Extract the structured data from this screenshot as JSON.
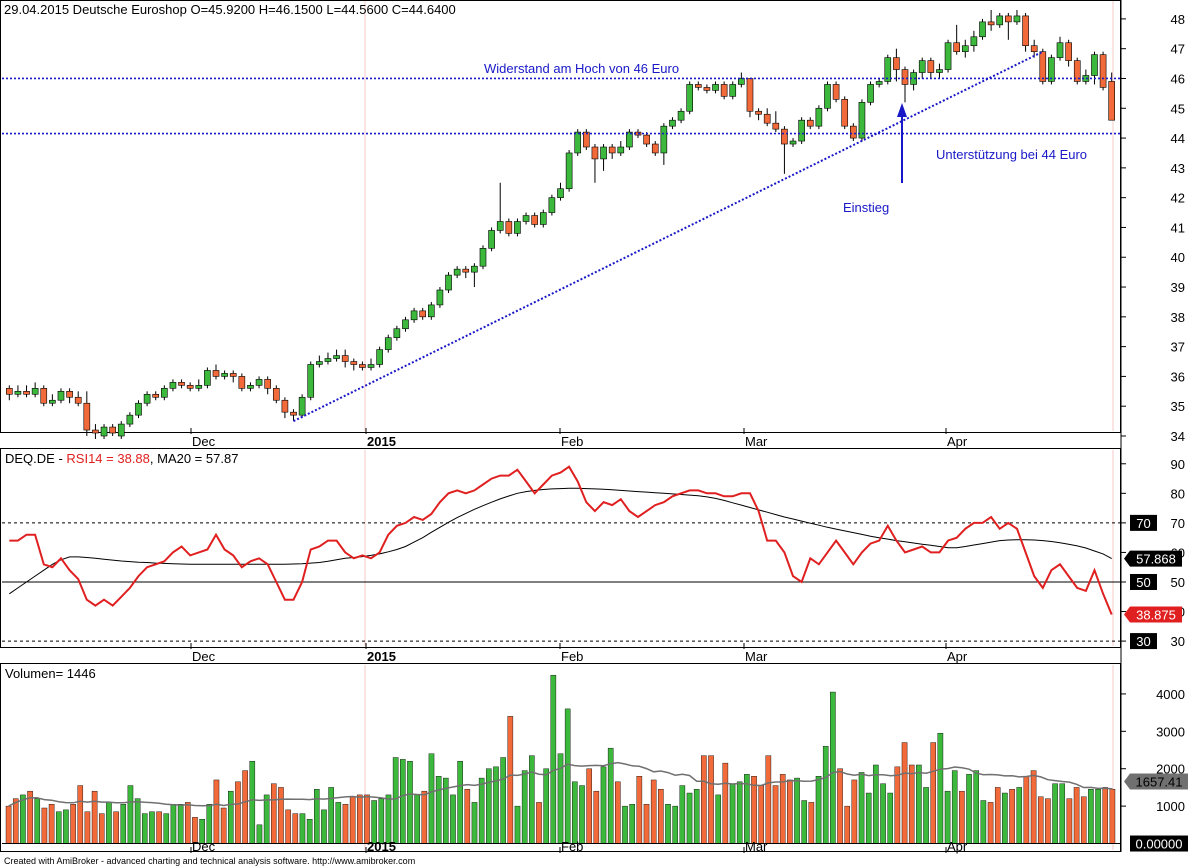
{
  "header": {
    "title": "29.04.2015 Deutsche Euroshop  O=45.9200  H=46.1500  L=44.5600  C=44.6400"
  },
  "footer": {
    "credit": "Created with AmiBroker - advanced charting and technical analysis software. http://www.amibroker.com"
  },
  "x_labels": [
    "Dec",
    "2015",
    "Feb",
    "Mar",
    "Apr"
  ],
  "colors": {
    "up": "#3cb83c",
    "down": "#f26a3a",
    "rsi": "#e02020",
    "annotation": "#1818c8",
    "ma": "#000000",
    "volume_ma": "#707070"
  },
  "chart_data": [
    {
      "type": "candlestick",
      "ylim": [
        34,
        48.5
      ],
      "yticks": [
        34,
        35,
        36,
        37,
        38,
        39,
        40,
        41,
        42,
        43,
        44,
        45,
        46,
        47,
        48
      ],
      "annotations": {
        "resistance_label": "Widerstand am Hoch von 46 Euro",
        "support_label": "Unterstützung bei 44 Euro",
        "entry_label": "Einstieg",
        "resistance_level": 46,
        "support_level": 44.15
      },
      "candles": [
        [
          35.6,
          35.4,
          35.7,
          35.2
        ],
        [
          35.4,
          35.5,
          35.7,
          35.3
        ],
        [
          35.5,
          35.4,
          35.7,
          35.3
        ],
        [
          35.4,
          35.6,
          35.8,
          35.3
        ],
        [
          35.6,
          35.1,
          35.7,
          35.0
        ],
        [
          35.1,
          35.2,
          35.4,
          35.0
        ],
        [
          35.2,
          35.5,
          35.6,
          35.1
        ],
        [
          35.5,
          35.3,
          35.6,
          35.1
        ],
        [
          35.3,
          35.1,
          35.5,
          35.0
        ],
        [
          35.1,
          34.2,
          35.5,
          34.0
        ],
        [
          34.2,
          34.1,
          34.4,
          33.9
        ],
        [
          34.0,
          34.3,
          34.4,
          33.9
        ],
        [
          34.3,
          34.1,
          34.4,
          34.0
        ],
        [
          34.0,
          34.4,
          34.5,
          33.9
        ],
        [
          34.4,
          34.7,
          34.8,
          34.3
        ],
        [
          34.7,
          35.1,
          35.2,
          34.6
        ],
        [
          35.1,
          35.4,
          35.5,
          35.0
        ],
        [
          35.4,
          35.3,
          35.5,
          35.2
        ],
        [
          35.3,
          35.6,
          35.7,
          35.2
        ],
        [
          35.6,
          35.8,
          35.9,
          35.5
        ],
        [
          35.8,
          35.7,
          35.9,
          35.6
        ],
        [
          35.7,
          35.6,
          35.8,
          35.5
        ],
        [
          35.6,
          35.7,
          35.9,
          35.5
        ],
        [
          35.7,
          36.2,
          36.3,
          35.6
        ],
        [
          36.2,
          36.0,
          36.4,
          35.9
        ],
        [
          36.0,
          36.1,
          36.2,
          35.9
        ],
        [
          36.1,
          36.0,
          36.2,
          35.8
        ],
        [
          36.0,
          35.6,
          36.1,
          35.5
        ],
        [
          35.6,
          35.7,
          35.8,
          35.5
        ],
        [
          35.7,
          35.9,
          36.0,
          35.6
        ],
        [
          35.9,
          35.6,
          36.0,
          35.4
        ],
        [
          35.6,
          35.2,
          35.7,
          35.1
        ],
        [
          35.2,
          34.8,
          35.3,
          34.6
        ],
        [
          34.8,
          34.7,
          34.9,
          34.5
        ],
        [
          34.7,
          35.3,
          35.4,
          34.6
        ],
        [
          35.3,
          36.4,
          36.5,
          35.2
        ],
        [
          36.4,
          36.5,
          36.7,
          36.3
        ],
        [
          36.5,
          36.6,
          36.8,
          36.4
        ],
        [
          36.6,
          36.7,
          36.9,
          36.5
        ],
        [
          36.7,
          36.5,
          36.9,
          36.3
        ],
        [
          36.5,
          36.4,
          36.6,
          36.2
        ],
        [
          36.4,
          36.3,
          36.5,
          36.2
        ],
        [
          36.3,
          36.4,
          36.6,
          36.2
        ],
        [
          36.4,
          36.9,
          37.0,
          36.3
        ],
        [
          36.9,
          37.3,
          37.4,
          36.8
        ],
        [
          37.3,
          37.6,
          37.7,
          37.2
        ],
        [
          37.6,
          37.9,
          38.0,
          37.5
        ],
        [
          37.9,
          38.2,
          38.3,
          37.8
        ],
        [
          38.2,
          38.0,
          38.3,
          37.9
        ],
        [
          38.0,
          38.4,
          38.5,
          37.9
        ],
        [
          38.4,
          38.9,
          39.0,
          38.3
        ],
        [
          38.9,
          39.4,
          39.5,
          38.8
        ],
        [
          39.4,
          39.6,
          39.7,
          39.3
        ],
        [
          39.6,
          39.5,
          39.7,
          39.3
        ],
        [
          39.5,
          39.7,
          39.8,
          39.0
        ],
        [
          39.7,
          40.3,
          40.4,
          39.6
        ],
        [
          40.3,
          40.9,
          41.0,
          40.2
        ],
        [
          40.9,
          41.2,
          42.5,
          40.8
        ],
        [
          41.2,
          40.8,
          41.3,
          40.7
        ],
        [
          40.8,
          41.2,
          41.3,
          40.7
        ],
        [
          41.2,
          41.4,
          41.5,
          41.1
        ],
        [
          41.4,
          41.1,
          41.5,
          41.0
        ],
        [
          41.1,
          41.5,
          41.6,
          41.0
        ],
        [
          41.5,
          42.0,
          42.1,
          41.4
        ],
        [
          42.0,
          42.3,
          42.5,
          41.9
        ],
        [
          42.3,
          43.5,
          43.6,
          42.2
        ],
        [
          43.5,
          44.2,
          44.3,
          43.4
        ],
        [
          44.2,
          43.7,
          44.3,
          43.6
        ],
        [
          43.7,
          43.3,
          43.8,
          42.5
        ],
        [
          43.3,
          43.7,
          43.8,
          42.9
        ],
        [
          43.7,
          43.5,
          43.8,
          43.3
        ],
        [
          43.5,
          43.7,
          43.9,
          43.4
        ],
        [
          43.7,
          44.2,
          44.3,
          43.6
        ],
        [
          44.2,
          44.1,
          44.3,
          44.0
        ],
        [
          44.1,
          43.8,
          44.2,
          43.7
        ],
        [
          43.8,
          43.5,
          43.9,
          43.4
        ],
        [
          43.5,
          44.4,
          44.5,
          43.1
        ],
        [
          44.4,
          44.6,
          44.7,
          44.3
        ],
        [
          44.6,
          44.9,
          45.0,
          44.5
        ],
        [
          44.9,
          45.8,
          45.9,
          44.8
        ],
        [
          45.8,
          45.7,
          45.9,
          45.6
        ],
        [
          45.7,
          45.6,
          45.8,
          45.5
        ],
        [
          45.6,
          45.8,
          45.9,
          45.5
        ],
        [
          45.8,
          45.4,
          45.9,
          45.3
        ],
        [
          45.4,
          45.8,
          45.9,
          45.3
        ],
        [
          45.8,
          46.0,
          46.2,
          45.7
        ],
        [
          46.0,
          44.9,
          46.0,
          44.7
        ],
        [
          44.9,
          44.8,
          45.0,
          44.6
        ],
        [
          44.8,
          44.5,
          45.0,
          44.4
        ],
        [
          44.5,
          44.3,
          44.9,
          44.2
        ],
        [
          44.3,
          43.8,
          44.4,
          42.8
        ],
        [
          43.8,
          43.9,
          44.0,
          43.7
        ],
        [
          43.9,
          44.6,
          44.7,
          43.8
        ],
        [
          44.6,
          44.4,
          44.7,
          44.3
        ],
        [
          44.4,
          45.0,
          45.1,
          44.3
        ],
        [
          45.0,
          45.8,
          45.9,
          44.9
        ],
        [
          45.8,
          45.3,
          45.9,
          45.2
        ],
        [
          45.3,
          44.4,
          45.4,
          44.3
        ],
        [
          44.4,
          44.0,
          44.5,
          43.9
        ],
        [
          44.0,
          45.2,
          45.3,
          43.9
        ],
        [
          45.2,
          45.8,
          45.9,
          45.1
        ],
        [
          45.8,
          45.9,
          46.0,
          45.7
        ],
        [
          45.9,
          46.7,
          46.8,
          45.8
        ],
        [
          46.7,
          46.3,
          47.0,
          45.9
        ],
        [
          46.3,
          45.8,
          46.4,
          45.2
        ],
        [
          45.8,
          46.2,
          46.3,
          45.6
        ],
        [
          46.2,
          46.6,
          46.7,
          46.0
        ],
        [
          46.6,
          46.2,
          46.7,
          46.0
        ],
        [
          46.2,
          46.3,
          46.5,
          46.0
        ],
        [
          46.3,
          47.2,
          47.3,
          46.2
        ],
        [
          47.2,
          46.9,
          47.8,
          46.8
        ],
        [
          46.9,
          47.1,
          47.3,
          46.7
        ],
        [
          47.1,
          47.4,
          47.6,
          46.9
        ],
        [
          47.4,
          47.9,
          48.0,
          47.3
        ],
        [
          47.9,
          47.8,
          48.3,
          47.6
        ],
        [
          47.8,
          48.1,
          48.2,
          47.7
        ],
        [
          48.1,
          47.9,
          48.2,
          47.3
        ],
        [
          47.9,
          48.1,
          48.3,
          47.8
        ],
        [
          48.1,
          47.1,
          48.2,
          46.9
        ],
        [
          47.1,
          46.9,
          47.3,
          46.7
        ],
        [
          46.9,
          45.9,
          47.0,
          45.8
        ],
        [
          45.9,
          46.7,
          46.8,
          45.8
        ],
        [
          46.7,
          47.2,
          47.4,
          46.6
        ],
        [
          47.2,
          46.6,
          47.3,
          46.4
        ],
        [
          46.6,
          45.9,
          46.7,
          45.8
        ],
        [
          45.9,
          46.1,
          46.3,
          45.8
        ],
        [
          46.1,
          46.8,
          46.9,
          45.8
        ],
        [
          46.8,
          45.7,
          46.9,
          45.6
        ],
        [
          45.9,
          44.6,
          46.2,
          44.6
        ]
      ]
    },
    {
      "type": "line",
      "title": "DEQ.DE - RSI14 = 38.88, MA20 = 57.87",
      "ylim": [
        28,
        95
      ],
      "yticks": [
        30,
        40,
        50,
        60,
        70,
        80,
        90
      ],
      "levels": [
        30,
        50,
        70
      ],
      "level_tags": [
        "70",
        "50",
        "30"
      ],
      "last_value_tags": [
        "57.868",
        "38.875"
      ],
      "series": [
        {
          "name": "RSI14",
          "values": [
            64,
            64,
            66,
            66,
            56,
            55,
            58,
            54,
            51,
            44,
            42,
            44,
            42,
            45,
            48,
            52,
            55,
            56,
            57,
            60,
            62,
            59,
            60,
            61,
            66,
            61,
            59,
            55,
            57,
            58,
            56,
            50,
            44,
            44,
            50,
            61,
            62,
            64,
            64,
            60,
            58,
            59,
            58,
            60,
            66,
            69,
            70,
            72,
            71,
            73,
            77,
            80,
            81,
            80,
            81,
            83,
            85,
            86,
            86,
            88,
            84,
            80,
            83,
            86,
            87,
            89,
            84,
            77,
            74,
            77,
            76,
            78,
            74,
            72,
            74,
            76,
            77,
            79,
            80,
            81,
            81,
            80,
            80,
            79,
            79,
            80,
            80,
            74,
            64,
            64,
            60,
            52,
            50,
            58,
            56,
            60,
            64,
            60,
            56,
            60,
            63,
            64,
            69,
            64,
            60,
            61,
            62,
            60,
            60,
            64,
            65,
            68,
            70,
            70,
            72,
            68,
            70,
            68,
            60,
            52,
            48,
            54,
            56,
            52,
            48,
            47,
            54,
            46,
            39
          ]
        },
        {
          "name": "MA20",
          "values": [
            46,
            48,
            50,
            52,
            54,
            56,
            57.5,
            58.5,
            58.5,
            58.3,
            58,
            57.7,
            57.4,
            57.1,
            56.9,
            56.7,
            56.6,
            56.4,
            56.3,
            56.2,
            56.1,
            56,
            56,
            56,
            56,
            56,
            56,
            56,
            56,
            56,
            56,
            56,
            56,
            56.1,
            56.2,
            56.4,
            56.6,
            57,
            57.5,
            58,
            58.3,
            58.6,
            59,
            59.5,
            60.2,
            61,
            62,
            63.5,
            65,
            66.8,
            68.5,
            70.2,
            71.8,
            73.2,
            74.6,
            75.8,
            77,
            78.1,
            79.1,
            80,
            80.6,
            81,
            81.3,
            81.5,
            81.6,
            81.7,
            81.7,
            81.6,
            81.5,
            81.4,
            81.2,
            81,
            80.8,
            80.6,
            80.4,
            80.2,
            80,
            79.8,
            79.6,
            79.4,
            79.2,
            78.8,
            78.3,
            77.6,
            76.8,
            76,
            75.2,
            74.4,
            73.6,
            72.8,
            72,
            71.3,
            70.6,
            69.9,
            69.2,
            68.5,
            67.9,
            67.3,
            66.7,
            66.1,
            65.5,
            65,
            64.5,
            64,
            63.6,
            63.2,
            62.8,
            62.4,
            62,
            61.6,
            61.6,
            62,
            62.5,
            63,
            63.5,
            64,
            64.2,
            64.3,
            64.3,
            64.2,
            64,
            63.7,
            63.3,
            62.8,
            62.2,
            61.5,
            60.5,
            59.5,
            57.9
          ]
        }
      ]
    },
    {
      "type": "bar",
      "title": "Volumen= 1446",
      "ylim": [
        -200,
        4800
      ],
      "yticks": [
        1000,
        2000,
        3000,
        4000
      ],
      "last_value_tags": [
        "1657.41",
        "0.00000"
      ],
      "volumes": [
        1000,
        1200,
        1300,
        1400,
        1200,
        950,
        1050,
        850,
        900,
        1050,
        1550,
        850,
        1400,
        800,
        1100,
        850,
        1050,
        1550,
        1200,
        800,
        850,
        850,
        800,
        1050,
        1050,
        1100,
        700,
        650,
        1050,
        1700,
        950,
        1400,
        1650,
        1950,
        2200,
        500,
        1300,
        1600,
        1500,
        900,
        800,
        800,
        650,
        1450,
        900,
        1500,
        1100,
        1050,
        1250,
        1300,
        1300,
        1150,
        1200,
        1300,
        2300,
        2250,
        2200,
        1300,
        1400,
        2400,
        1800,
        1750,
        1300,
        2200,
        1450,
        1100,
        1750,
        2000,
        2050,
        2300,
        3400,
        1000,
        1950,
        2350,
        1100,
        2000,
        4500,
        2400,
        3600,
        1650,
        1550,
        2000,
        1400,
        2050,
        2550,
        1650,
        1000,
        1050,
        1800,
        1050,
        1700,
        1450,
        1050,
        1000,
        1550,
        1350,
        1450,
        2350,
        2350,
        1300,
        2150,
        1600,
        1650,
        1850,
        1800,
        1550,
        2350,
        1550,
        1850,
        1700,
        1750,
        1150,
        1100,
        1800,
        2600,
        4050,
        2000,
        1000,
        1700,
        1900,
        1350,
        2100,
        1600,
        1350,
        2050,
        2700,
        2100,
        2100,
        1500,
        2700,
        2950,
        1400,
        1950,
        1400,
        1850,
        1950,
        1150,
        1100,
        1500,
        1350,
        1450,
        1500,
        1800,
        1950,
        1250,
        1200,
        1600,
        1600,
        1200,
        1500,
        1250,
        1450,
        1450,
        1500,
        1450
      ]
    }
  ]
}
